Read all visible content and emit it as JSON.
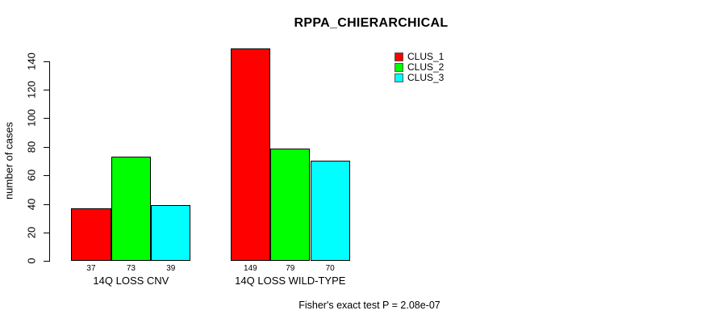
{
  "chart_data": {
    "type": "bar",
    "title": "RPPA_CHIERARCHICAL",
    "xlabel": "",
    "ylabel": "number of cases",
    "categories": [
      "14Q LOSS CNV",
      "14Q LOSS WILD-TYPE"
    ],
    "series": [
      {
        "name": "CLUS_1",
        "color": "#ff0000",
        "values": [
          37,
          149
        ]
      },
      {
        "name": "CLUS_2",
        "color": "#00ff00",
        "values": [
          73,
          79
        ]
      },
      {
        "name": "CLUS_3",
        "color": "#00ffff",
        "values": [
          39,
          70
        ]
      }
    ],
    "ylim": [
      0,
      150
    ],
    "yticks": [
      0,
      20,
      40,
      60,
      80,
      100,
      120,
      140
    ],
    "grid": false,
    "show_values_under_bars": true,
    "legend_position": "top-right",
    "bar_border_color": "#000000",
    "annotation": "Fisher's exact test P = 2.08e-07"
  }
}
